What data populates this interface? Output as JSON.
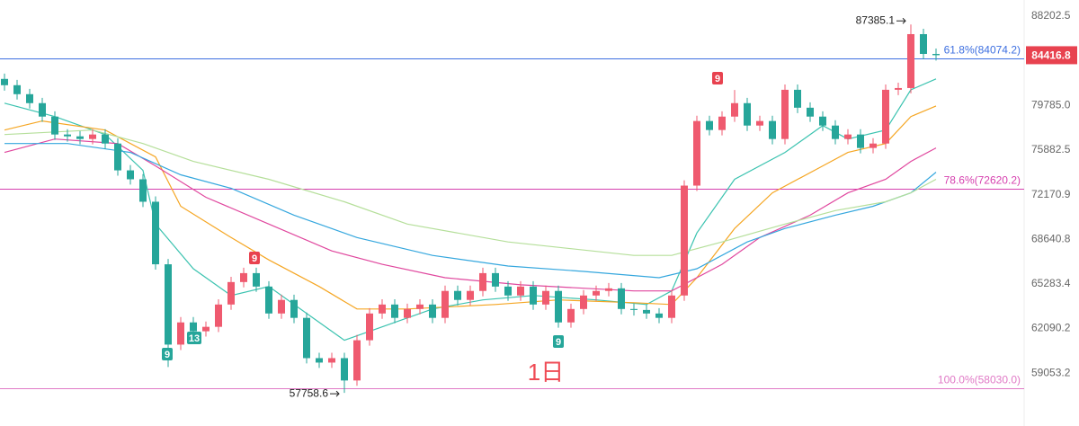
{
  "chart_data": {
    "type": "candlestick",
    "log_scale": true,
    "ylim": [
      55649,
      89821
    ],
    "yticks": [
      88202.5,
      {
        "value": 79785,
        "label": "79785.0"
      },
      75882.5,
      72170.9,
      68640.8,
      65283.4,
      62090.2,
      59053.2
    ],
    "up_color": "#ef5a6f",
    "down_color": "#26a69a",
    "candles": [
      [
        82200,
        82690,
        81120,
        81620
      ],
      [
        81620,
        82110,
        80320,
        80800
      ],
      [
        80800,
        81280,
        79510,
        79990
      ],
      [
        79990,
        80470,
        78320,
        78790
      ],
      [
        78790,
        79260,
        76760,
        77220
      ],
      [
        77220,
        77680,
        76600,
        77060
      ],
      [
        77060,
        77520,
        76370,
        76830
      ],
      [
        76830,
        77680,
        76370,
        77220
      ],
      [
        77220,
        77680,
        75980,
        76440
      ],
      [
        76440,
        76900,
        73730,
        74170
      ],
      [
        74170,
        74620,
        72990,
        73430
      ],
      [
        73430,
        73870,
        71170,
        71600
      ],
      [
        71600,
        72030,
        66340,
        66740
      ],
      [
        66740,
        67140,
        59460,
        60980
      ],
      [
        60980,
        62900,
        60610,
        62520
      ],
      [
        62520,
        62900,
        61530,
        61900
      ],
      [
        61900,
        62580,
        61530,
        62210
      ],
      [
        62210,
        64170,
        61840,
        63790
      ],
      [
        63790,
        65810,
        63410,
        65420
      ],
      [
        65420,
        66480,
        65030,
        66080
      ],
      [
        66080,
        66480,
        64700,
        65090
      ],
      [
        65090,
        65480,
        62770,
        63150
      ],
      [
        63150,
        64500,
        62770,
        64120
      ],
      [
        64120,
        64500,
        62460,
        62840
      ],
      [
        62840,
        63220,
        59700,
        60060
      ],
      [
        60060,
        60420,
        59400,
        59760
      ],
      [
        59760,
        60420,
        59400,
        60060
      ],
      [
        60060,
        60420,
        57758.6,
        58570
      ],
      [
        58570,
        61650,
        58220,
        61280
      ],
      [
        61280,
        63530,
        60910,
        63150
      ],
      [
        63150,
        64170,
        62770,
        63790
      ],
      [
        63790,
        64170,
        62460,
        62840
      ],
      [
        62840,
        63850,
        62460,
        63470
      ],
      [
        63470,
        64170,
        63090,
        63790
      ],
      [
        63790,
        64170,
        62460,
        62840
      ],
      [
        62840,
        65160,
        62460,
        64770
      ],
      [
        64770,
        65160,
        63730,
        64120
      ],
      [
        64120,
        65160,
        63730,
        64770
      ],
      [
        64770,
        66480,
        64380,
        66080
      ],
      [
        66080,
        66480,
        64700,
        65090
      ],
      [
        65090,
        65480,
        64050,
        64440
      ],
      [
        64440,
        65480,
        64050,
        65090
      ],
      [
        65090,
        65480,
        63410,
        63790
      ],
      [
        63790,
        65160,
        63410,
        64770
      ],
      [
        64770,
        65160,
        62150,
        62520
      ],
      [
        62520,
        63850,
        62150,
        63470
      ],
      [
        63470,
        64830,
        63090,
        64440
      ],
      [
        64440,
        65160,
        64050,
        64770
      ],
      [
        64770,
        65350,
        64380,
        64960
      ],
      [
        64960,
        65350,
        63090,
        63470
      ],
      [
        63470,
        63850,
        63000,
        63400
      ],
      [
        63400,
        63780,
        62770,
        63150
      ],
      [
        63150,
        63530,
        62460,
        62840
      ],
      [
        62840,
        64830,
        62460,
        64440
      ],
      [
        64440,
        73350,
        64050,
        72910
      ],
      [
        72910,
        78870,
        72470,
        78400
      ],
      [
        78400,
        78870,
        77140,
        77610
      ],
      [
        77610,
        79260,
        77140,
        78790
      ],
      [
        78790,
        81180,
        78320,
        79990
      ],
      [
        79990,
        80470,
        77530,
        78000
      ],
      [
        78000,
        78870,
        77530,
        78400
      ],
      [
        78400,
        78870,
        76370,
        76830
      ],
      [
        76830,
        81690,
        76370,
        81200
      ],
      [
        81200,
        81690,
        79100,
        79580
      ],
      [
        79580,
        80060,
        78320,
        78790
      ],
      [
        78790,
        79260,
        77530,
        78000
      ],
      [
        78000,
        78470,
        76370,
        76830
      ],
      [
        76830,
        77680,
        76370,
        77220
      ],
      [
        77220,
        77680,
        75600,
        76060
      ],
      [
        76060,
        76900,
        75600,
        76440
      ],
      [
        76440,
        81690,
        75980,
        81200
      ],
      [
        81200,
        81850,
        80710,
        81360
      ],
      [
        81360,
        87385.1,
        80870,
        86440
      ],
      [
        86440,
        86960,
        84030,
        84540
      ],
      [
        84540,
        85050,
        83910,
        84420
      ]
    ],
    "series": [
      {
        "color": "#3cc3b0",
        "x": [
          0,
          4,
          8,
          11,
          12,
          15,
          18,
          21,
          23,
          27,
          30,
          34,
          38,
          42,
          47,
          51,
          53,
          55,
          58,
          62,
          65,
          67,
          70,
          72,
          74
        ],
        "values": [
          79990,
          78790,
          77220,
          74170,
          69830,
          66410,
          64440,
          65090,
          63790,
          61280,
          62210,
          63470,
          64120,
          64440,
          64120,
          63790,
          64770,
          69130,
          73430,
          75680,
          78000,
          76830,
          77610,
          81200,
          82200
        ]
      },
      {
        "color": "#f5a623",
        "x": [
          0,
          3,
          8,
          12,
          14,
          18,
          21,
          25,
          28,
          32,
          39,
          44,
          50,
          53,
          55,
          58,
          61,
          65,
          67,
          70,
          72,
          74
        ],
        "values": [
          77610,
          78400,
          77610,
          75300,
          71240,
          68780,
          67070,
          65090,
          63470,
          63470,
          63790,
          64120,
          63920,
          63790,
          65740,
          69480,
          72320,
          74540,
          75680,
          76440,
          78790,
          79740
        ]
      },
      {
        "color": "#e0479e",
        "x": [
          0,
          4,
          9,
          12,
          16,
          21,
          26,
          30,
          35,
          41,
          50,
          53,
          57,
          60,
          64,
          67,
          70,
          72,
          74
        ],
        "values": [
          75680,
          76830,
          76440,
          74540,
          71960,
          69830,
          67750,
          66740,
          65740,
          65220,
          64770,
          64770,
          66740,
          68780,
          70530,
          72320,
          73430,
          74920,
          76060
        ]
      },
      {
        "color": "#35a7de",
        "x": [
          0,
          5,
          10,
          14,
          18,
          23,
          28,
          34,
          40,
          46,
          52,
          55,
          59,
          62,
          66,
          69,
          72,
          74
        ],
        "values": [
          76440,
          76440,
          75680,
          73800,
          72690,
          70530,
          68780,
          67410,
          66610,
          66210,
          65740,
          66410,
          68440,
          69480,
          70530,
          71240,
          72320,
          74020
        ]
      },
      {
        "color": "#b5df9a",
        "x": [
          0,
          7,
          11,
          15,
          21,
          27,
          32,
          40,
          50,
          53,
          57,
          62,
          66,
          70,
          72,
          74
        ],
        "values": [
          77220,
          77610,
          76440,
          74920,
          73430,
          71600,
          69830,
          68440,
          67410,
          67410,
          68440,
          69830,
          70890,
          71600,
          72320,
          73430
        ]
      }
    ],
    "fib_levels": [
      {
        "value": 84074.2,
        "label": "61.8%(84074.2)",
        "color": "#3d6fe0"
      },
      {
        "value": 72620.2,
        "label": "78.6%(72620.2)",
        "color": "#d63fae"
      },
      {
        "value": 58030.0,
        "label": "100.0%(58030.0)",
        "color": "#e07ac6"
      }
    ],
    "last_price": 84416.8,
    "high_label": "87385.1",
    "low_label": "57758.6",
    "markers": [
      "9",
      "9",
      "9",
      "13",
      "9"
    ],
    "interval": "1日"
  }
}
